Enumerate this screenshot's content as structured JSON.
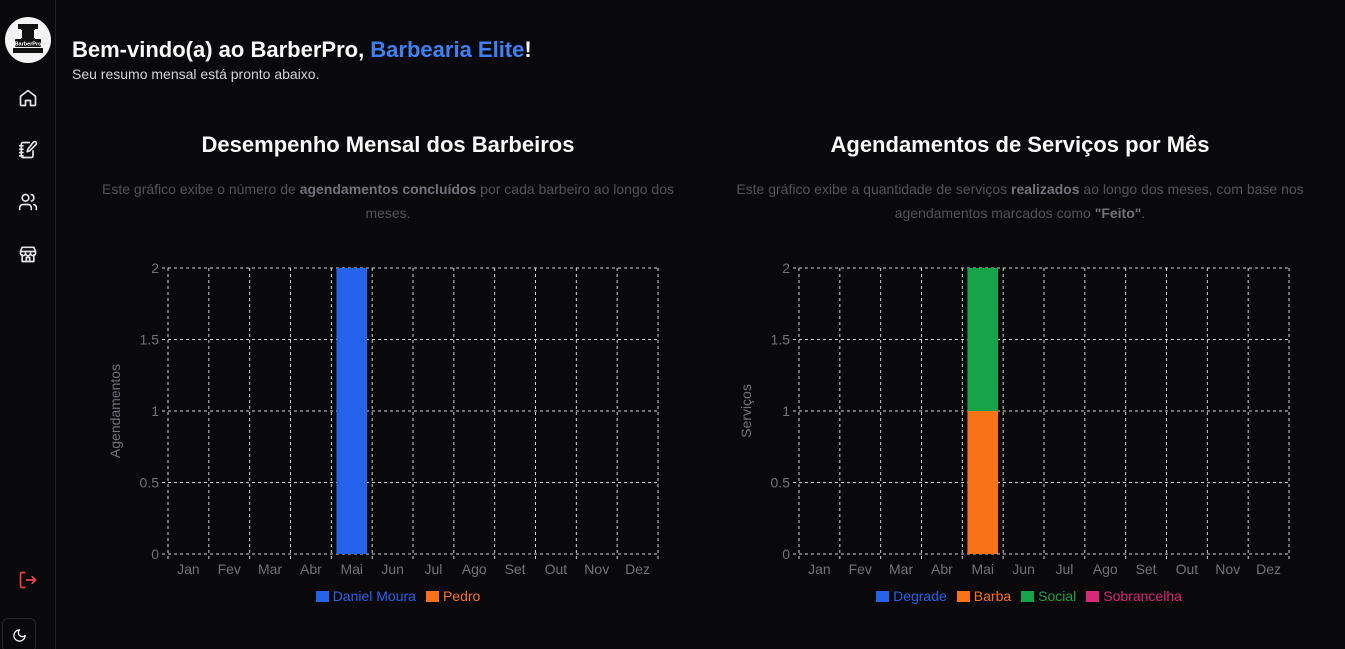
{
  "sidebar": {
    "logo_text": "BarberPro",
    "items": [
      {
        "name": "home",
        "icon": "home-icon"
      },
      {
        "name": "appointments",
        "icon": "notebook-pen-icon"
      },
      {
        "name": "users",
        "icon": "users-icon"
      },
      {
        "name": "store",
        "icon": "store-icon"
      }
    ],
    "logout_icon": "logout-icon",
    "theme_icon": "moon-icon"
  },
  "header": {
    "welcome_prefix": "Bem-vindo(a) ao ",
    "app_name": "BarberPro",
    "separator": ", ",
    "shop_name": "Barbearia Elite",
    "suffix": "!",
    "subtitle": "Seu resumo mensal está pronto abaixo."
  },
  "charts": [
    {
      "title": "Desempenho Mensal dos Barbeiros",
      "desc_before": "Este gráfico exibe o número de ",
      "desc_bold": "agendamentos concluídos",
      "desc_after": " por cada barbeiro ao longo dos meses.",
      "desc_after2": ""
    },
    {
      "title": "Agendamentos de Serviços por Mês",
      "desc_before": "Este gráfico exibe a quantidade de serviços ",
      "desc_bold": "realizados",
      "desc_after": " ao longo dos meses, com base nos agendamentos marcados como ",
      "desc_bold2": "\"Feito\"",
      "desc_after2": "."
    }
  ],
  "chart_data": [
    {
      "type": "bar",
      "stacked": true,
      "title": "Desempenho Mensal dos Barbeiros",
      "xlabel": "",
      "ylabel": "Agendamentos",
      "ylim": [
        0,
        2
      ],
      "yticks": [
        "0",
        "0.5",
        "1",
        "1.5",
        "2"
      ],
      "categories": [
        "Jan",
        "Fev",
        "Mar",
        "Abr",
        "Mai",
        "Jun",
        "Jul",
        "Ago",
        "Set",
        "Out",
        "Nov",
        "Dez"
      ],
      "series": [
        {
          "name": "Daniel Moura",
          "color": "#2563eb",
          "values": [
            0,
            0,
            0,
            0,
            2,
            0,
            0,
            0,
            0,
            0,
            0,
            0
          ]
        },
        {
          "name": "Pedro",
          "color": "#f97316",
          "values": [
            0,
            0,
            0,
            0,
            0,
            0,
            0,
            0,
            0,
            0,
            0,
            0
          ]
        }
      ],
      "grid": true,
      "legend": "bottom"
    },
    {
      "type": "bar",
      "stacked": true,
      "title": "Agendamentos de Serviços por Mês",
      "xlabel": "",
      "ylabel": "Serviços",
      "ylim": [
        0,
        2
      ],
      "yticks": [
        "0",
        "0.5",
        "1",
        "1.5",
        "2"
      ],
      "categories": [
        "Jan",
        "Fev",
        "Mar",
        "Abr",
        "Mai",
        "Jun",
        "Jul",
        "Ago",
        "Set",
        "Out",
        "Nov",
        "Dez"
      ],
      "series": [
        {
          "name": "Degrade",
          "color": "#2563eb",
          "values": [
            0,
            0,
            0,
            0,
            0,
            0,
            0,
            0,
            0,
            0,
            0,
            0
          ]
        },
        {
          "name": "Barba",
          "color": "#f97316",
          "values": [
            0,
            0,
            0,
            0,
            1,
            0,
            0,
            0,
            0,
            0,
            0,
            0
          ]
        },
        {
          "name": "Social",
          "color": "#16a34a",
          "values": [
            0,
            0,
            0,
            0,
            1,
            0,
            0,
            0,
            0,
            0,
            0,
            0
          ]
        },
        {
          "name": "Sobrancelha",
          "color": "#db2777",
          "values": [
            0,
            0,
            0,
            0,
            0,
            0,
            0,
            0,
            0,
            0,
            0,
            0
          ]
        }
      ],
      "grid": true,
      "legend": "bottom"
    }
  ]
}
